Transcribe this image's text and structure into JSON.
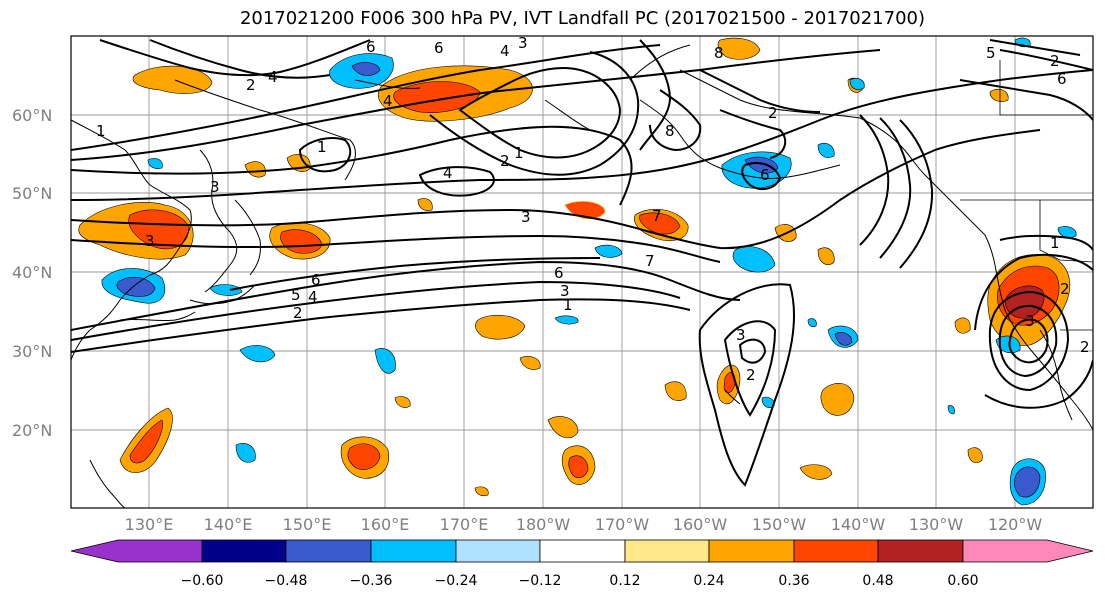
{
  "title": "2017021200 F006 300 hPa PV, IVT Landfall PC (2017021500 - 2017021700)",
  "map": {
    "lat_labels": [
      "60°N",
      "50°N",
      "40°N",
      "30°N",
      "20°N"
    ],
    "lon_labels": [
      "130°E",
      "140°E",
      "150°E",
      "160°E",
      "170°E",
      "180°W",
      "170°W",
      "160°W",
      "150°W",
      "140°W",
      "130°W",
      "120°W"
    ],
    "contour_labels": [
      "6",
      "6",
      "4",
      "3",
      "8",
      "8",
      "7",
      "4",
      "4",
      "1",
      "1",
      "1",
      "2",
      "4",
      "3",
      "2",
      "2",
      "3",
      "3",
      "3",
      "6",
      "5",
      "4",
      "2",
      "7",
      "1",
      "3",
      "6",
      "6",
      "5",
      "2",
      "6",
      "3",
      "2",
      "2",
      "1",
      "2"
    ]
  },
  "colorbar": {
    "colors": [
      "#9932cc",
      "#00008b",
      "#3a5bcd",
      "#00bfff",
      "#b0e0ff",
      "#ffffff",
      "#ffe88a",
      "#ffa500",
      "#ff4500",
      "#b22222",
      "#ff88bb"
    ],
    "tick_labels": [
      "−0.60",
      "−0.48",
      "−0.36",
      "−0.24",
      "−0.12",
      "0.12",
      "0.24",
      "0.36",
      "0.48",
      "0.60"
    ]
  }
}
